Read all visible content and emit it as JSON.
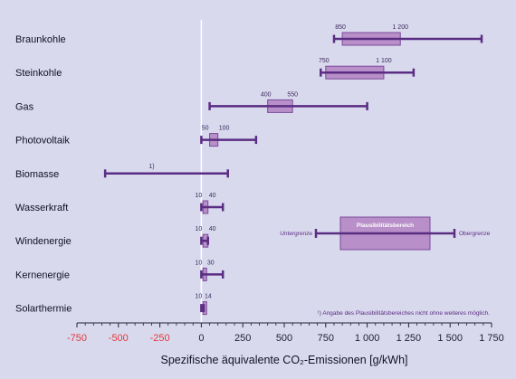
{
  "chart_data": {
    "type": "range-bar",
    "categories": [
      "Braunkohle",
      "Steinkohle",
      "Gas",
      "Photovoltaik",
      "Biomasse",
      "Wasserkraft",
      "Windenergie",
      "Kernenergie",
      "Solarthermie"
    ],
    "series": [
      {
        "category": "Braunkohle",
        "whisker": [
          800,
          1690
        ],
        "box": [
          850,
          1200
        ],
        "labels": [
          "850",
          "1 200"
        ]
      },
      {
        "category": "Steinkohle",
        "whisker": [
          720,
          1280
        ],
        "box": [
          750,
          1100
        ],
        "labels": [
          "750",
          "1 100"
        ]
      },
      {
        "category": "Gas",
        "whisker": [
          50,
          1000
        ],
        "box": [
          400,
          550
        ],
        "labels": [
          "400",
          "550"
        ]
      },
      {
        "category": "Photovoltaik",
        "whisker": [
          0,
          330
        ],
        "box": [
          50,
          100
        ],
        "labels": [
          "50",
          "100"
        ]
      },
      {
        "category": "Biomasse",
        "whisker": [
          -580,
          160
        ],
        "box": null,
        "labels": [
          "1)"
        ]
      },
      {
        "category": "Wasserkraft",
        "whisker": [
          0,
          130
        ],
        "box": [
          10,
          40
        ],
        "labels": [
          "10",
          "40"
        ]
      },
      {
        "category": "Windenergie",
        "whisker": [
          0,
          40
        ],
        "box": [
          10,
          40
        ],
        "labels": [
          "10",
          "40"
        ]
      },
      {
        "category": "Kernenergie",
        "whisker": [
          0,
          130
        ],
        "box": [
          10,
          30
        ],
        "labels": [
          "10",
          "30"
        ]
      },
      {
        "category": "Solarthermie",
        "whisker": [
          0,
          14
        ],
        "box": [
          10,
          14
        ],
        "labels": [
          "10",
          "14"
        ]
      }
    ],
    "xticks": [
      -750,
      -500,
      -250,
      0,
      250,
      500,
      750,
      1000,
      1250,
      1500,
      1750
    ],
    "xtick_labels": [
      "-750",
      "-500",
      "-250",
      "0",
      "250",
      "500",
      "750",
      "1 000",
      "1 250",
      "1 500",
      "1 750"
    ],
    "xlim": [
      -750,
      1750
    ],
    "xlabel": "Spezifische äquivalente CO₂-Emissionen [g/kWh]",
    "ylabel": "",
    "legend": {
      "box_label": "Plausibilitätsbereich",
      "lower_label": "Untergrenze",
      "upper_label": "Obergrenze",
      "placement": "right-center"
    },
    "footnote": "¹) Angabe des Plausibilitätsbereiches nicht ohne weiteres möglich.",
    "colors": {
      "background": "#d9d9ee",
      "whisker": "#5a2d82",
      "box_fill": "#b88fc8",
      "box_stroke": "#7a4a9a",
      "negative_tick": "#e03a3a",
      "positive_tick": "#222233",
      "zero_line": "#ffffff"
    }
  }
}
